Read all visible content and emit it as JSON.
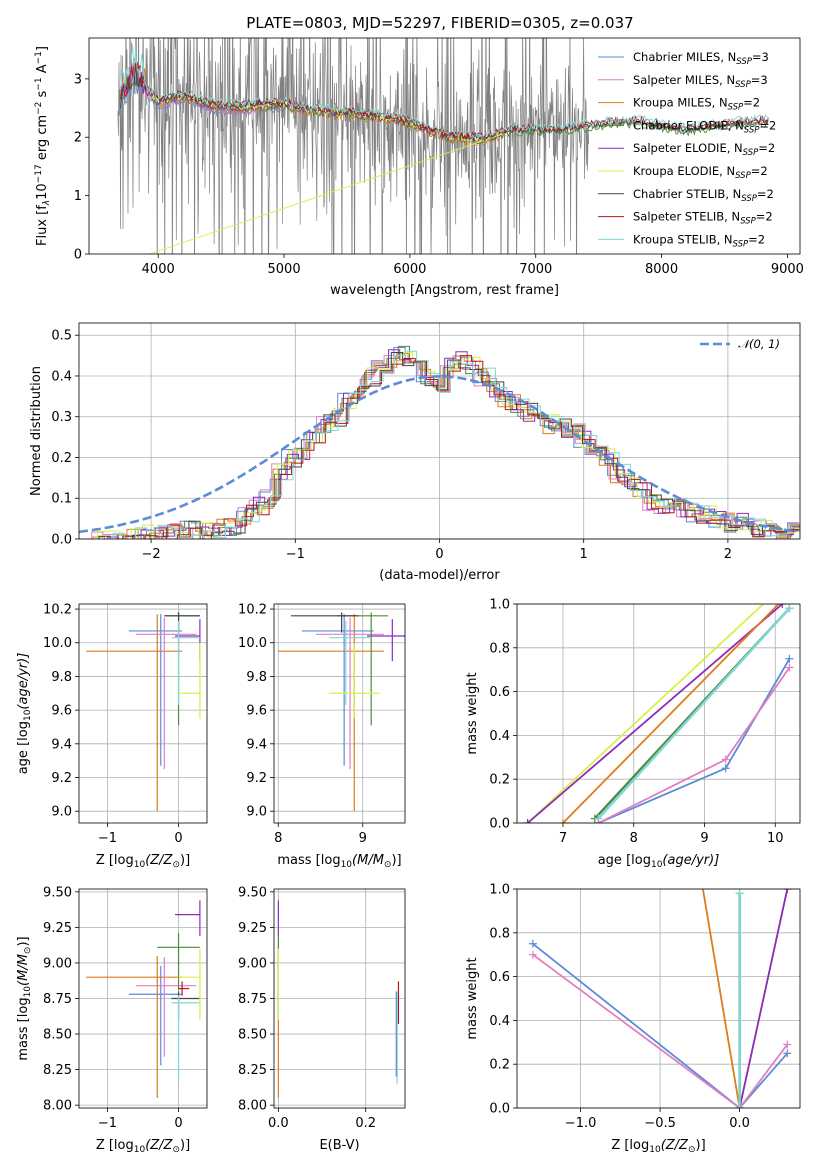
{
  "title": "PLATE=0803, MJD=52297, FIBERID=0305, z=0.037",
  "models": [
    {
      "name": "Chabrier MILES",
      "nssp": "3",
      "color": "#5b8bd9"
    },
    {
      "name": "Salpeter MILES",
      "nssp": "3",
      "color": "#e07fc0"
    },
    {
      "name": "Kroupa MILES",
      "nssp": "2",
      "color": "#e07b1a"
    },
    {
      "name": "Chabrier ELODIE",
      "nssp": "2",
      "color": "#4f8a3a"
    },
    {
      "name": "Salpeter ELODIE",
      "nssp": "2",
      "color": "#8e2bbd"
    },
    {
      "name": "Kroupa ELODIE",
      "nssp": "2",
      "color": "#d6f04a"
    },
    {
      "name": "Chabrier STELIB",
      "nssp": "2",
      "color": "#444444"
    },
    {
      "name": "Salpeter STELIB",
      "nssp": "2",
      "color": "#b81414"
    },
    {
      "name": "Kroupa STELIB",
      "nssp": "2",
      "color": "#7fd8d8"
    }
  ],
  "chart_data": [
    {
      "id": "spectrum",
      "type": "line",
      "xlabel": "wavelength [Angstrom, rest frame]",
      "ylabel_main": "Flux [f",
      "ylabel_sub": "λ",
      "ylabel_rest": "10",
      "ylabel_exp1": "−17",
      "ylabel_unit": " erg cm",
      "ylabel_exp2": "−2",
      "ylabel_s": " s",
      "ylabel_exp3": "−1",
      "ylabel_A": " A",
      "ylabel_exp4": "−1",
      "ylabel_end": "]",
      "xlim": [
        3450,
        9100
      ],
      "ylim": [
        0,
        3.7
      ],
      "xticks": [
        4000,
        5000,
        6000,
        7000,
        8000,
        9000
      ],
      "yticks": [
        0,
        1,
        2,
        3
      ],
      "data_color": "#808080",
      "data_coverage": [
        3680,
        7420
      ],
      "model_continuum_x": [
        3680,
        3750,
        3800,
        3900,
        4000,
        4200,
        4400,
        4600,
        4860,
        5000,
        5200,
        5500,
        5900,
        6100,
        6300,
        6563,
        6800,
        7200,
        7500,
        7800,
        8200,
        8500,
        8800
      ],
      "model_continuum_y": [
        2.6,
        2.8,
        3.1,
        2.8,
        2.6,
        2.7,
        2.55,
        2.5,
        2.55,
        2.55,
        2.45,
        2.4,
        2.3,
        2.15,
        2.0,
        1.95,
        2.1,
        2.1,
        2.2,
        2.25,
        2.1,
        2.2,
        2.25
      ]
    },
    {
      "id": "residuals",
      "type": "step",
      "xlabel": "(data-model)/error",
      "ylabel": "Normed distribution",
      "xlim": [
        -2.5,
        2.5
      ],
      "ylim": [
        0,
        0.53
      ],
      "xticks": [
        -2,
        -1,
        0,
        1,
        2
      ],
      "xticklabels": [
        "−2",
        "−1",
        "0",
        "1",
        "2"
      ],
      "yticks": [
        0.0,
        0.1,
        0.2,
        0.3,
        0.4,
        0.5
      ],
      "yticklabels": [
        "0.0",
        "0.1",
        "0.2",
        "0.3",
        "0.4",
        "0.5"
      ],
      "gaussian_label": "𝒩(0, 1)",
      "gaussian_color": "#5b8bd9",
      "bin_width": 0.1,
      "hist_base": [
        0.0,
        0.0,
        0.0,
        0.0,
        0.005,
        0.01,
        0.01,
        0.01,
        0.015,
        0.02,
        0.02,
        0.02,
        0.025,
        0.03,
        0.06,
        0.08,
        0.1,
        0.16,
        0.2,
        0.22,
        0.24,
        0.28,
        0.3,
        0.34,
        0.36,
        0.4,
        0.42,
        0.44,
        0.45,
        0.42,
        0.4,
        0.38,
        0.42,
        0.44,
        0.43,
        0.4,
        0.37,
        0.34,
        0.33,
        0.31,
        0.3,
        0.28,
        0.27,
        0.26,
        0.24,
        0.22,
        0.2,
        0.16,
        0.14,
        0.12,
        0.09,
        0.08,
        0.08,
        0.07,
        0.06,
        0.06,
        0.05,
        0.04,
        0.04,
        0.03,
        0.03,
        0.03,
        0.02,
        0.02
      ]
    },
    {
      "id": "age_vs_Z",
      "type": "errorbar",
      "xlabel": "Z [log",
      "xlabel_sub": "10",
      "xlabel_rest": "(Z/Z",
      "xlabel_end": ")]",
      "ylabel": "age  [log",
      "ylabel_sub": "10",
      "ylabel_rest": "(age/yr)]",
      "xlim": [
        -1.4,
        0.4
      ],
      "ylim": [
        8.93,
        10.23
      ],
      "xticks": [
        -1,
        0
      ],
      "xticklabels": [
        "−1",
        "0"
      ],
      "yticks": [
        9.0,
        9.2,
        9.4,
        9.6,
        9.8,
        10.0,
        10.2
      ],
      "yticklabels": [
        "9.0",
        "9.2",
        "9.4",
        "9.6",
        "9.8",
        "10.0",
        "10.2"
      ],
      "points": [
        {
          "c": 2,
          "x": -0.3,
          "y": 9.95,
          "xerr": [
            1.0,
            0.35
          ],
          "yerr": [
            0.95,
            0.22
          ]
        },
        {
          "c": 0,
          "x": -0.25,
          "y": 10.07,
          "xerr": [
            0.45,
            0.3
          ],
          "yerr": [
            0.8,
            0.1
          ]
        },
        {
          "c": 1,
          "x": -0.2,
          "y": 10.05,
          "xerr": [
            0.4,
            0.45
          ],
          "yerr": [
            0.8,
            0.1
          ]
        },
        {
          "c": 4,
          "x": 0.3,
          "y": 10.04,
          "xerr": [
            0.35,
            0.0
          ],
          "yerr": [
            0.15,
            0.1
          ]
        },
        {
          "c": 3,
          "x": 0.0,
          "y": 10.16,
          "xerr": [
            0.2,
            0.3
          ],
          "yerr": [
            0.65,
            0.02
          ]
        },
        {
          "c": 6,
          "x": 0.0,
          "y": 10.16,
          "xerr": [
            0.2,
            0.3
          ],
          "yerr": [
            0.1,
            0.02
          ]
        },
        {
          "c": 8,
          "x": 0.0,
          "y": 10.03,
          "xerr": [
            0.1,
            0.3
          ],
          "yerr": [
            0.4,
            0.1
          ]
        },
        {
          "c": 5,
          "x": 0.3,
          "y": 9.7,
          "xerr": [
            0.3,
            0.0
          ],
          "yerr": [
            0.15,
            0.3
          ]
        }
      ]
    },
    {
      "id": "age_vs_mass",
      "type": "errorbar",
      "xlabel": "mass [log",
      "xlabel_sub": "10",
      "xlabel_rest": "(M/M",
      "xlabel_end": ")]",
      "xlim": [
        7.95,
        9.5
      ],
      "ylim": [
        8.93,
        10.23
      ],
      "xticks": [
        8,
        9
      ],
      "xticklabels": [
        "8",
        "9"
      ],
      "yticks": [
        9.0,
        9.2,
        9.4,
        9.6,
        9.8,
        10.0,
        10.2
      ],
      "yticklabels": [
        "9.0",
        "9.2",
        "9.4",
        "9.6",
        "9.8",
        "10.0",
        "10.2"
      ],
      "points": [
        {
          "c": 2,
          "x": 8.9,
          "y": 9.95,
          "xerr": [
            0.9,
            0.35
          ],
          "yerr": [
            0.95,
            0.22
          ]
        },
        {
          "c": 0,
          "x": 8.78,
          "y": 10.07,
          "xerr": [
            0.5,
            0.35
          ],
          "yerr": [
            0.8,
            0.1
          ]
        },
        {
          "c": 1,
          "x": 8.85,
          "y": 10.05,
          "xerr": [
            0.4,
            0.4
          ],
          "yerr": [
            0.8,
            0.1
          ]
        },
        {
          "c": 4,
          "x": 9.35,
          "y": 10.04,
          "xerr": [
            0.3,
            0.25
          ],
          "yerr": [
            0.15,
            0.1
          ]
        },
        {
          "c": 3,
          "x": 9.1,
          "y": 10.16,
          "xerr": [
            0.4,
            0.2
          ],
          "yerr": [
            0.65,
            0.02
          ]
        },
        {
          "c": 6,
          "x": 8.75,
          "y": 10.16,
          "xerr": [
            0.6,
            0.2
          ],
          "yerr": [
            0.1,
            0.02
          ]
        },
        {
          "c": 8,
          "x": 8.8,
          "y": 10.03,
          "xerr": [
            0.2,
            0.3
          ],
          "yerr": [
            0.4,
            0.1
          ]
        },
        {
          "c": 5,
          "x": 8.9,
          "y": 9.7,
          "xerr": [
            0.3,
            0.3
          ],
          "yerr": [
            0.15,
            0.3
          ]
        }
      ]
    },
    {
      "id": "massweight_vs_age",
      "type": "line",
      "xlabel": "age  [log",
      "xlabel_sub": "10",
      "xlabel_rest": "(age/yr)]",
      "ylabel": "mass weight",
      "xlim": [
        6.35,
        10.35
      ],
      "ylim": [
        0,
        1
      ],
      "xticks": [
        7,
        8,
        9,
        10
      ],
      "yticks": [
        0.0,
        0.2,
        0.4,
        0.6,
        0.8,
        1.0
      ],
      "yticklabels": [
        "0.0",
        "0.2",
        "0.4",
        "0.6",
        "0.8",
        "1.0"
      ],
      "series": [
        {
          "c": 5,
          "x": [
            6.5,
            10.0
          ],
          "y": [
            0.0,
            1.05
          ]
        },
        {
          "c": 4,
          "x": [
            6.5,
            10.1
          ],
          "y": [
            0.0,
            1.0
          ]
        },
        {
          "c": 2,
          "x": [
            7.0,
            10.2
          ],
          "y": [
            0.0,
            1.05
          ]
        },
        {
          "c": 3,
          "x": [
            7.45,
            10.2
          ],
          "y": [
            0.02,
            0.98
          ]
        },
        {
          "c": 8,
          "x": [
            7.5,
            10.2
          ],
          "y": [
            0.02,
            0.98
          ]
        },
        {
          "c": 0,
          "x": [
            7.5,
            9.3,
            10.2
          ],
          "y": [
            0.0,
            0.25,
            0.75
          ]
        },
        {
          "c": 1,
          "x": [
            7.5,
            9.3,
            10.2
          ],
          "y": [
            0.0,
            0.29,
            0.71
          ]
        }
      ]
    },
    {
      "id": "mass_vs_Z",
      "type": "errorbar",
      "xlabel": "Z [log",
      "xlabel_sub": "10",
      "xlabel_rest": "(Z/Z",
      "xlabel_end": ")]",
      "ylabel": "mass [log",
      "ylabel_sub": "10",
      "ylabel_rest": "(M/M",
      "ylabel_end": ")]",
      "xlim": [
        -1.4,
        0.4
      ],
      "ylim": [
        7.98,
        9.52
      ],
      "xticks": [
        -1,
        0
      ],
      "xticklabels": [
        "−1",
        "0"
      ],
      "yticks": [
        8.0,
        8.25,
        8.5,
        8.75,
        9.0,
        9.25,
        9.5
      ],
      "yticklabels": [
        "8.00",
        "8.25",
        "8.50",
        "8.75",
        "9.00",
        "9.25",
        "9.50"
      ],
      "points": [
        {
          "c": 2,
          "x": -0.3,
          "y": 8.9,
          "xerr": [
            1.0,
            0.35
          ],
          "yerr": [
            0.85,
            0.15
          ]
        },
        {
          "c": 0,
          "x": -0.25,
          "y": 8.78,
          "xerr": [
            0.45,
            0.3
          ],
          "yerr": [
            0.5,
            0.2
          ]
        },
        {
          "c": 1,
          "x": -0.2,
          "y": 8.84,
          "xerr": [
            0.4,
            0.45
          ],
          "yerr": [
            0.5,
            0.2
          ]
        },
        {
          "c": 4,
          "x": 0.3,
          "y": 9.34,
          "xerr": [
            0.35,
            0.0
          ],
          "yerr": [
            0.15,
            0.1
          ]
        },
        {
          "c": 3,
          "x": 0.0,
          "y": 9.11,
          "xerr": [
            0.3,
            0.3
          ],
          "yerr": [
            0.3,
            0.1
          ]
        },
        {
          "c": 6,
          "x": 0.0,
          "y": 8.75,
          "xerr": [
            0.1,
            0.3
          ],
          "yerr": [
            0.15,
            0.05
          ]
        },
        {
          "c": 8,
          "x": 0.0,
          "y": 8.72,
          "xerr": [
            0.1,
            0.3
          ],
          "yerr": [
            0.55,
            0.05
          ]
        },
        {
          "c": 5,
          "x": 0.3,
          "y": 8.9,
          "xerr": [
            0.3,
            0.0
          ],
          "yerr": [
            0.3,
            0.2
          ]
        },
        {
          "c": 7,
          "x": 0.05,
          "y": 8.82,
          "xerr": [
            0.05,
            0.1
          ],
          "yerr": [
            0.05,
            0.05
          ]
        }
      ]
    },
    {
      "id": "mass_vs_ebv",
      "type": "errorbar",
      "xlabel": "E(B-V)",
      "xlim": [
        -0.01,
        0.29
      ],
      "ylim": [
        7.98,
        9.52
      ],
      "xticks": [
        0.0,
        0.2
      ],
      "xticklabels": [
        "0.0",
        "0.2"
      ],
      "yticks": [
        8.0,
        8.25,
        8.5,
        8.75,
        9.0,
        9.25,
        9.5
      ],
      "yticklabels": [
        "8.00",
        "8.25",
        "8.50",
        "8.75",
        "9.00",
        "9.25",
        "9.50"
      ],
      "points": [
        {
          "c": 2,
          "x": 0.0,
          "y": 8.9,
          "xerr": [
            0,
            0
          ],
          "yerr": [
            0.85,
            0.15
          ]
        },
        {
          "c": 4,
          "x": 0.0,
          "y": 9.34,
          "xerr": [
            0,
            0
          ],
          "yerr": [
            0.15,
            0.1
          ]
        },
        {
          "c": 3,
          "x": 0.0,
          "y": 9.1,
          "xerr": [
            0,
            0
          ],
          "yerr": [
            0.5,
            0.1
          ]
        },
        {
          "c": 5,
          "x": 0.0,
          "y": 8.9,
          "xerr": [
            0,
            0
          ],
          "yerr": [
            0.3,
            0.2
          ]
        },
        {
          "c": 7,
          "x": 0.275,
          "y": 8.72,
          "xerr": [
            0,
            0
          ],
          "yerr": [
            0.15,
            0.15
          ]
        },
        {
          "c": 8,
          "x": 0.272,
          "y": 8.5,
          "xerr": [
            0,
            0
          ],
          "yerr": [
            0.35,
            0.3
          ]
        },
        {
          "c": 0,
          "x": 0.27,
          "y": 8.5,
          "xerr": [
            0,
            0
          ],
          "yerr": [
            0.3,
            0.3
          ]
        }
      ]
    },
    {
      "id": "massweight_vs_Z",
      "type": "line",
      "xlabel": "Z [log",
      "xlabel_sub": "10",
      "xlabel_rest": "(Z/Z",
      "xlabel_end": ")]",
      "ylabel": "mass weight",
      "xlim": [
        -1.4,
        0.38
      ],
      "ylim": [
        0,
        1
      ],
      "xticks": [
        -1.0,
        -0.5,
        0.0
      ],
      "xticklabels": [
        "−1.0",
        "−0.5",
        "0.0"
      ],
      "yticks": [
        0.0,
        0.2,
        0.4,
        0.6,
        0.8,
        1.0
      ],
      "yticklabels": [
        "0.0",
        "0.2",
        "0.4",
        "0.6",
        "0.8",
        "1.0"
      ],
      "series": [
        {
          "c": 0,
          "x": [
            -1.3,
            0.0,
            0.3
          ],
          "y": [
            0.75,
            0.0,
            0.25
          ]
        },
        {
          "c": 1,
          "x": [
            -1.3,
            0.0,
            0.3
          ],
          "y": [
            0.7,
            0.0,
            0.29
          ]
        },
        {
          "c": 2,
          "x": [
            -0.3,
            0.0
          ],
          "y": [
            1.3,
            0.0
          ]
        },
        {
          "c": 5,
          "x": [
            0.0,
            0.3
          ],
          "y": [
            0.0,
            1.0
          ]
        },
        {
          "c": 4,
          "x": [
            0.0,
            0.3
          ],
          "y": [
            0.0,
            1.0
          ]
        },
        {
          "c": 3,
          "x": [
            0.0,
            0.0
          ],
          "y": [
            0.0,
            0.98
          ]
        },
        {
          "c": 8,
          "x": [
            0.0,
            0.0
          ],
          "y": [
            0.0,
            0.98
          ]
        }
      ]
    }
  ]
}
